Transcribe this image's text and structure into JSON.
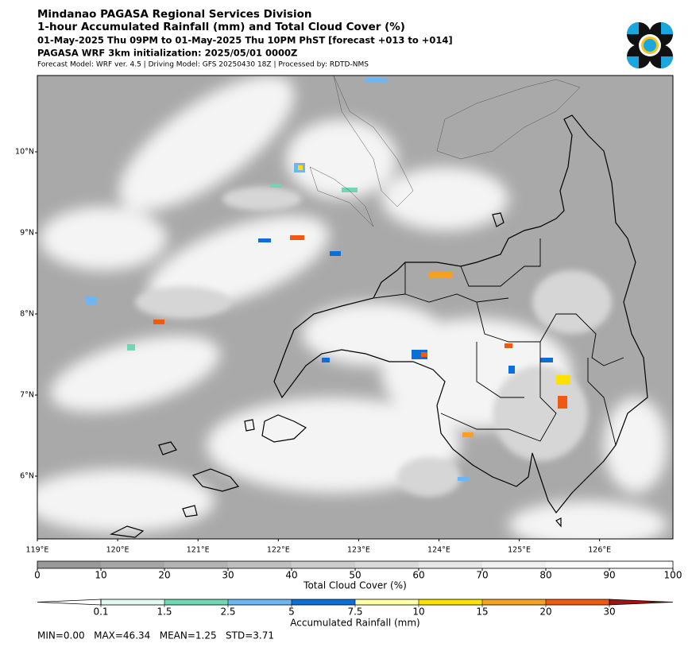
{
  "header": {
    "org": "Mindanao PAGASA Regional Services Division",
    "title": "1-hour Accumulated Rainfall (mm) and Total Cloud Cover (%)",
    "period": "01-May-2025 Thu 09PM to 01-May-2025 Thu 10PM PhST [forecast +013 to +014]",
    "init": "PAGASA WRF 3km initialization: 2025/05/01 0000Z",
    "model": "Forecast Model: WRF ver. 4.5 | Driving Model: GFS 20250430 18Z | Processed by: RDTD-NMS"
  },
  "map": {
    "lat_ticks": [
      {
        "value": 10,
        "label": "10°N"
      },
      {
        "value": 9,
        "label": "9°N"
      },
      {
        "value": 8,
        "label": "8°N"
      },
      {
        "value": 7,
        "label": "7°N"
      },
      {
        "value": 6,
        "label": "6°N"
      }
    ],
    "lon_ticks": [
      {
        "value": 119,
        "label": "119°E"
      },
      {
        "value": 120,
        "label": "120°E"
      },
      {
        "value": 121,
        "label": "121°E"
      },
      {
        "value": 122,
        "label": "122°E"
      },
      {
        "value": 123,
        "label": "123°E"
      },
      {
        "value": 124,
        "label": "124°E"
      },
      {
        "value": 125,
        "label": "125°E"
      },
      {
        "value": 126,
        "label": "126°E"
      }
    ]
  },
  "cloud_colorbar": {
    "label": "Total Cloud Cover (%)",
    "ticks": [
      0,
      10,
      20,
      30,
      40,
      50,
      60,
      70,
      80,
      90,
      100
    ],
    "colors": [
      "#999999",
      "#a6a6a6",
      "#b3b3b3",
      "#bfbfbf",
      "#cccccc",
      "#d9d9d9",
      "#e6e6e6",
      "#f0f0f0",
      "#f8f8f8",
      "#ffffff"
    ]
  },
  "rain_colorbar": {
    "label": "Accumulated Rainfall (mm)",
    "ticks": [
      0.1,
      1.5,
      2.5,
      5,
      7.5,
      10,
      15,
      20,
      30
    ],
    "colors": [
      "#ffffff",
      "#e2f8f0",
      "#72d6b2",
      "#6db6f2",
      "#0b6fd8",
      "#ffffa8",
      "#ffe000",
      "#f5a020",
      "#f05a10",
      "#a51010"
    ]
  },
  "stats": "MIN=0.00   MAX=46.34   MEAN=1.25   STD=3.71"
}
